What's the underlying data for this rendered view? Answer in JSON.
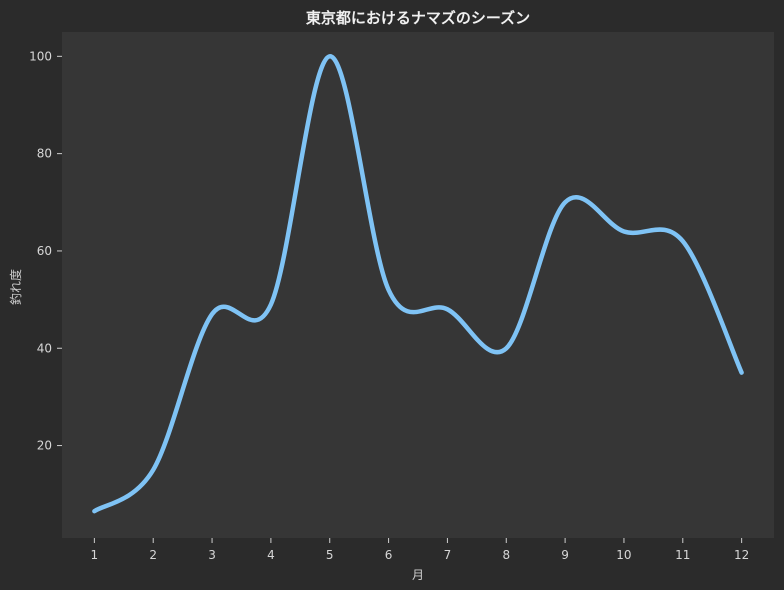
{
  "chart_data": {
    "type": "line",
    "title": "東京都におけるナマズのシーズン",
    "xlabel": "月",
    "ylabel": "釣れ度",
    "x": [
      1,
      2,
      3,
      4,
      5,
      6,
      7,
      8,
      9,
      10,
      11,
      12
    ],
    "xticks": [
      "1",
      "2",
      "3",
      "4",
      "5",
      "6",
      "7",
      "8",
      "9",
      "10",
      "11",
      "12"
    ],
    "yticks": [
      "20",
      "40",
      "60",
      "80",
      "100"
    ],
    "ylim": [
      1,
      105
    ],
    "xlim": [
      0.45,
      12.55
    ],
    "grid": false,
    "series": [
      {
        "values": [
          6.5,
          15,
          47,
          49,
          100,
          52,
          48,
          40,
          70,
          64,
          62,
          35
        ],
        "color": "#7fc3f5"
      }
    ]
  },
  "colors": {
    "page_background": "#2b2b2b",
    "plot_background": "#363636",
    "text": "#d6d6d6"
  }
}
